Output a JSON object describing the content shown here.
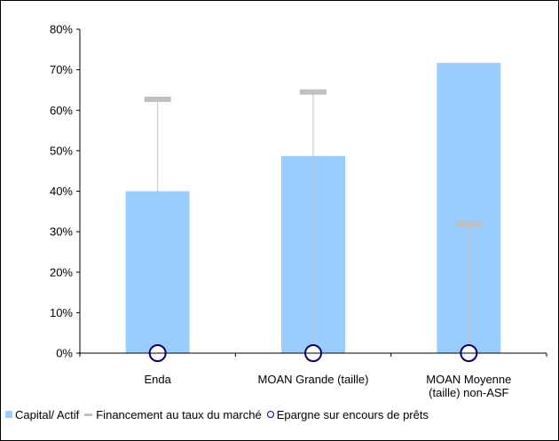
{
  "chart_data": {
    "type": "bar",
    "categories": [
      "Enda",
      "MOAN Grande (taille)",
      "MOAN Moyenne (taille) non-ASF"
    ],
    "category_lines": [
      [
        "Enda"
      ],
      [
        "MOAN Grande (taille)"
      ],
      [
        "MOAN Moyenne",
        "(taille) non-ASF"
      ]
    ],
    "series": [
      {
        "name": "Capital/ Actif",
        "kind": "bar",
        "values": [
          40,
          48.7,
          71.7
        ]
      },
      {
        "name": "Financement au taux du marché",
        "kind": "dash",
        "values": [
          62.7,
          64.5,
          32
        ]
      },
      {
        "name": "Epargne sur encours de prêts",
        "kind": "circle",
        "values": [
          0,
          0,
          0
        ]
      }
    ],
    "ylim": [
      0,
      80
    ],
    "yticks": [
      "0%",
      "10%",
      "20%",
      "30%",
      "40%",
      "50%",
      "60%",
      "70%",
      "80%"
    ],
    "ytick_values": [
      0,
      10,
      20,
      30,
      40,
      50,
      60,
      70,
      80
    ],
    "grid": false,
    "legend_position": "bottom",
    "colors": {
      "bar": "#99ccff",
      "dash": "#c0c0c0",
      "circle": "#000080",
      "whisker": "#c0c0c0"
    }
  },
  "legend": {
    "bar_label": "Capital/ Actif",
    "dash_label": "Financement au taux du marché",
    "circle_label": "Epargne sur encours de prêts"
  }
}
